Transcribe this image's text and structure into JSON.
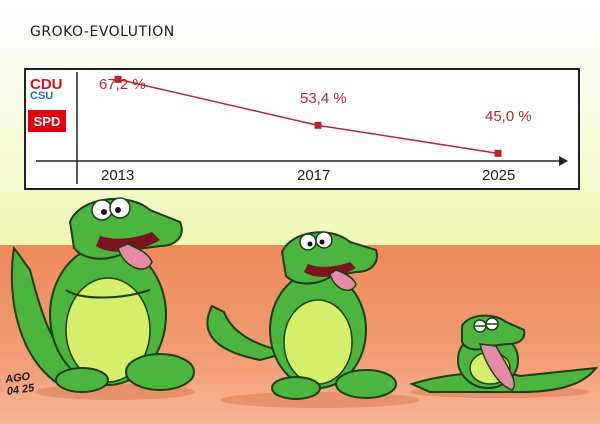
{
  "title": "GROKO-EVOLUTION",
  "logos": {
    "cdu": "CDU",
    "csu": "CSU",
    "spd": "SPD"
  },
  "chart_data": {
    "type": "line",
    "x": [
      "2013",
      "2017",
      "2025"
    ],
    "series": [
      {
        "values": [
          67.2,
          53.4,
          45.0
        ]
      }
    ],
    "labels": [
      "67,2 %",
      "53,4 %",
      "45,0 %"
    ],
    "ylim": [
      40,
      70
    ],
    "grid": false
  },
  "signature": {
    "name": "AGO",
    "date": "04 25"
  },
  "colors": {
    "line": "#b3262a",
    "croc": "#4cb53f",
    "belly": "#d6ef6a",
    "floor": "#ef8c5f"
  }
}
